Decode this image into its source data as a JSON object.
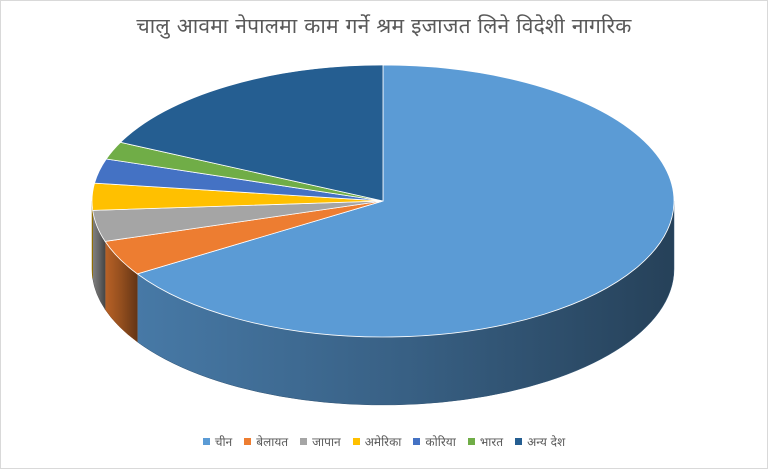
{
  "chart_data": {
    "type": "pie",
    "style": "3d",
    "title": "चालु आवमा नेपालमा काम गर्ने श्रम इजाजत लिने विदेशी नागरिक",
    "categories": [
      "चीन",
      "बेलायत",
      "जापान",
      "अमेरिका",
      "कोरिया",
      "भारत",
      "अन्य देश"
    ],
    "values": [
      66,
      4.2,
      3.7,
      3.2,
      2.9,
      2.1,
      17.9
    ],
    "colors": [
      "#5B9BD5",
      "#ED7D31",
      "#A5A5A5",
      "#FFC000",
      "#4472C4",
      "#70AD47",
      "#255E91"
    ],
    "legend_position": "bottom"
  }
}
